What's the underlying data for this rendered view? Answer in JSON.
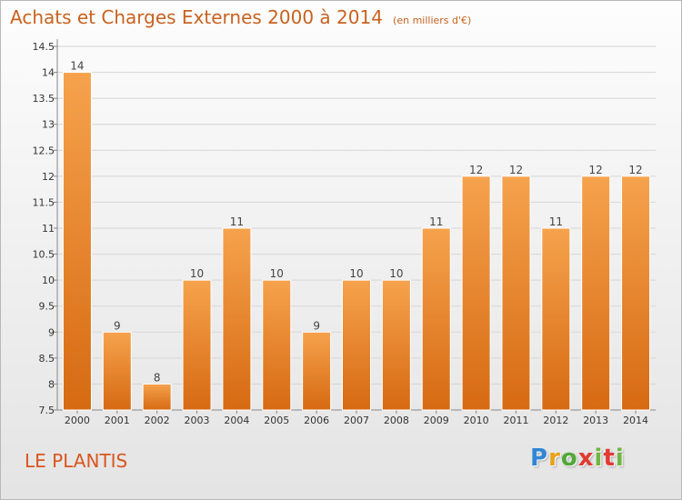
{
  "header": {
    "title": "Achats et Charges Externes 2000 à 2014",
    "subtitle": "(en milliers d'€)"
  },
  "footer": {
    "commune": "LE PLANTIS",
    "logo": "Proxiti"
  },
  "colors": {
    "bar_light": "#f6a24d",
    "bar_dark": "#d66a12",
    "title": "#c8621f",
    "commune": "#d9561e"
  },
  "chart_data": {
    "type": "bar",
    "title": "Achats et Charges Externes 2000 à 2014",
    "subtitle": "(en milliers d'€)",
    "xlabel": "",
    "ylabel": "",
    "categories": [
      "2000",
      "2001",
      "2002",
      "2003",
      "2004",
      "2005",
      "2006",
      "2007",
      "2008",
      "2009",
      "2010",
      "2011",
      "2012",
      "2013",
      "2014"
    ],
    "values": [
      14,
      9,
      8,
      10,
      11,
      10,
      9,
      10,
      10,
      11,
      12,
      12,
      11,
      12,
      12
    ],
    "data_labels": [
      "14",
      "9",
      "8",
      "10",
      "11",
      "10",
      "9",
      "10",
      "10",
      "11",
      "12",
      "12",
      "11",
      "12",
      "12"
    ],
    "ylim": [
      7.5,
      14.5
    ],
    "yticks": [
      7.5,
      8,
      8.5,
      9,
      9.5,
      10,
      10.5,
      11,
      11.5,
      12,
      12.5,
      13,
      13.5,
      14,
      14.5
    ],
    "ytick_labels": [
      "7.5",
      "8",
      "8.5",
      "9",
      "9.5",
      "10",
      "10.5",
      "11",
      "11.5",
      "12",
      "12.5",
      "13",
      "13.5",
      "14",
      "14.5"
    ],
    "grid": true,
    "legend": "none"
  }
}
